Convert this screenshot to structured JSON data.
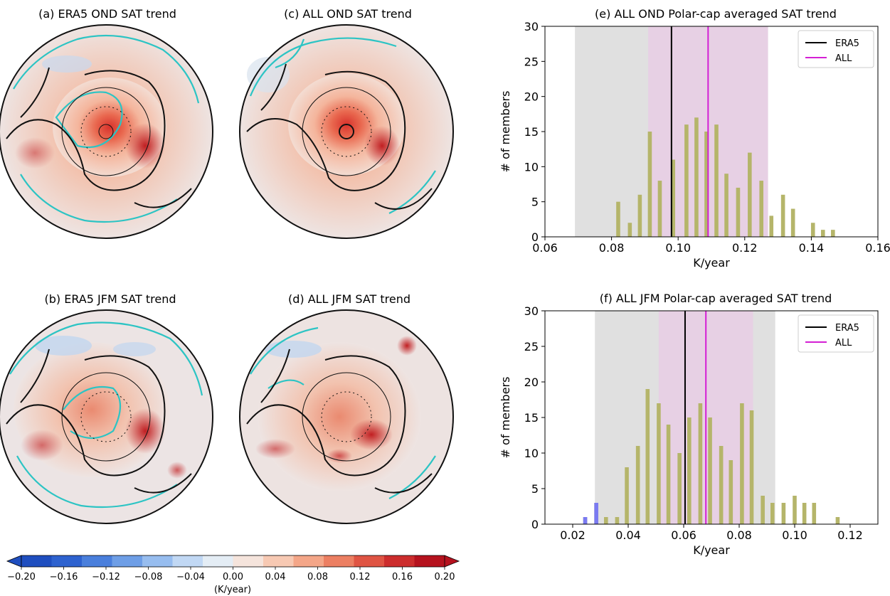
{
  "maps": [
    {
      "id": "a",
      "title": "(a) ERA5 OND SAT trend"
    },
    {
      "id": "c",
      "title": "(c) ALL OND SAT trend"
    },
    {
      "id": "b",
      "title": "(b) ERA5 JFM SAT trend"
    },
    {
      "id": "d",
      "title": "(d) ALL JFM SAT trend"
    }
  ],
  "colorbar": {
    "ticks": [
      "−0.20",
      "−0.16",
      "−0.12",
      "−0.08",
      "−0.04",
      "0.00",
      "0.04",
      "0.08",
      "0.12",
      "0.16",
      "0.20"
    ],
    "label": "(K/year)",
    "colors": [
      "#1f4ebf",
      "#2e62cf",
      "#4a7fdc",
      "#6e9ee6",
      "#97bdef",
      "#c1d8f4",
      "#e4edf5",
      "#f5e4dc",
      "#f7c9b3",
      "#f4a688",
      "#ec7f62",
      "#df5443",
      "#cc2d2d",
      "#b5121e"
    ]
  },
  "chart_data": [
    {
      "type": "bar",
      "title": "(e) ALL OND Polar-cap averaged SAT trend",
      "xlabel": "K/year",
      "ylabel": "# of members",
      "xlim": [
        0.06,
        0.16
      ],
      "ylim": [
        0,
        30
      ],
      "xticks": [
        "0.06",
        "0.08",
        "0.10",
        "0.12",
        "0.14",
        "0.16"
      ],
      "yticks": [
        "0",
        "5",
        "10",
        "15",
        "20",
        "25",
        "30"
      ],
      "bar_color": "#b5b56a",
      "x": [
        0.082,
        0.0855,
        0.0885,
        0.0915,
        0.0945,
        0.0985,
        0.1025,
        0.1055,
        0.1085,
        0.1115,
        0.1145,
        0.118,
        0.1215,
        0.125,
        0.128,
        0.1315,
        0.1345,
        0.1405,
        0.1435,
        0.1465
      ],
      "values": [
        5,
        2,
        6,
        15,
        8,
        11,
        16,
        17,
        15,
        16,
        9,
        7,
        12,
        8,
        3,
        6,
        4,
        2,
        1,
        1
      ],
      "shaded_ranges": [
        {
          "from": 0.069,
          "to": 0.127,
          "color": "#e0e0e0"
        },
        {
          "from": 0.091,
          "to": 0.127,
          "color": "#e7d0e4"
        }
      ],
      "series": [
        {
          "name": "ERA5",
          "value": 0.098,
          "color": "#000000"
        },
        {
          "name": "ALL",
          "value": 0.109,
          "color": "#d41fd4"
        }
      ],
      "legend": "top-right"
    },
    {
      "type": "bar",
      "title": "(f) ALL JFM Polar-cap averaged SAT trend",
      "xlabel": "K/year",
      "ylabel": "# of members",
      "xlim": [
        0.01,
        0.13
      ],
      "ylim": [
        0,
        30
      ],
      "xticks": [
        "0.02",
        "0.04",
        "0.06",
        "0.08",
        "0.10",
        "0.12"
      ],
      "yticks": [
        "0",
        "5",
        "10",
        "15",
        "20",
        "25",
        "30"
      ],
      "bar_color": "#b5b56a",
      "x": [
        0.0245,
        0.0285,
        0.032,
        0.036,
        0.0395,
        0.0435,
        0.047,
        0.051,
        0.0545,
        0.0585,
        0.062,
        0.066,
        0.0695,
        0.0735,
        0.077,
        0.081,
        0.0845,
        0.0885,
        0.092,
        0.096,
        0.1,
        0.1035,
        0.107,
        0.1155
      ],
      "values": [
        1,
        3,
        1,
        1,
        8,
        11,
        19,
        17,
        14,
        10,
        15,
        17,
        15,
        11,
        9,
        17,
        16,
        4,
        3,
        3,
        4,
        3,
        3,
        1
      ],
      "highlight": [
        {
          "x": 0.0245,
          "value": 1,
          "color": "#7a7af2"
        },
        {
          "x": 0.0285,
          "value": 3,
          "color": "#7a7af2"
        }
      ],
      "shaded_ranges": [
        {
          "from": 0.028,
          "to": 0.093,
          "color": "#e0e0e0"
        },
        {
          "from": 0.051,
          "to": 0.085,
          "color": "#e7d0e4"
        }
      ],
      "series": [
        {
          "name": "ERA5",
          "value": 0.0605,
          "color": "#000000"
        },
        {
          "name": "ALL",
          "value": 0.068,
          "color": "#d41fd4"
        }
      ],
      "legend": "top-right"
    }
  ]
}
